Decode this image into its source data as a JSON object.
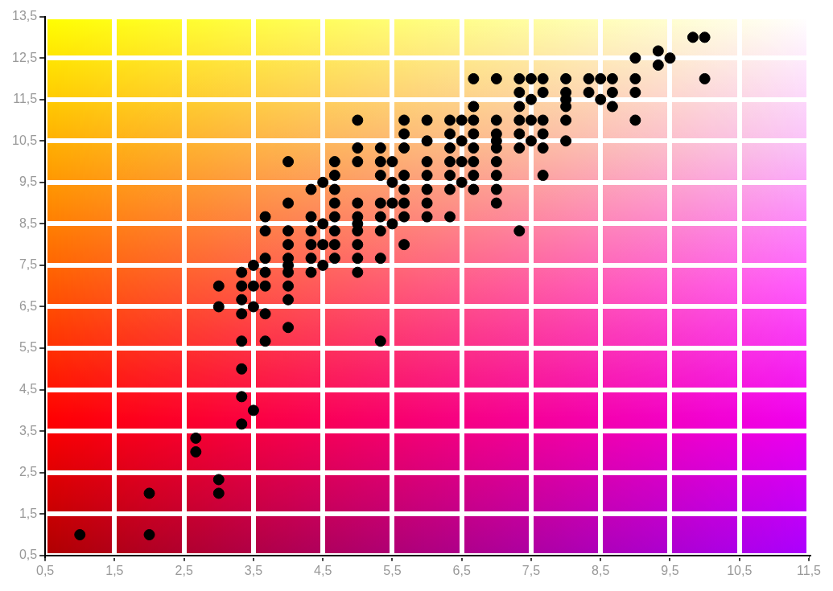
{
  "chart_data": {
    "type": "scatter",
    "xlim": [
      0.5,
      11.5
    ],
    "xticks": [
      {
        "value": 0.5,
        "label": "0,5"
      },
      {
        "value": 1.5,
        "label": "1,5"
      },
      {
        "value": 2.5,
        "label": "2,5"
      },
      {
        "value": 3.5,
        "label": "3,5"
      },
      {
        "value": 4.5,
        "label": "4,5"
      },
      {
        "value": 5.5,
        "label": "5,5"
      },
      {
        "value": 6.5,
        "label": "6,5"
      },
      {
        "value": 7.5,
        "label": "7,5"
      },
      {
        "value": 8.5,
        "label": "8,5"
      },
      {
        "value": 9.5,
        "label": "9,5"
      },
      {
        "value": 10.5,
        "label": "10,5"
      },
      {
        "value": 11.5,
        "label": "11,5"
      }
    ],
    "ylim": [
      0.5,
      13.5
    ],
    "yticks": [
      {
        "value": 0.5,
        "label": "0,5"
      },
      {
        "value": 1.5,
        "label": "1,5"
      },
      {
        "value": 2.5,
        "label": "2,5"
      },
      {
        "value": 3.5,
        "label": "3,5"
      },
      {
        "value": 4.5,
        "label": "4,5"
      },
      {
        "value": 5.5,
        "label": "5,5"
      },
      {
        "value": 6.5,
        "label": "6,5"
      },
      {
        "value": 7.5,
        "label": "7,5"
      },
      {
        "value": 8.5,
        "label": "8,5"
      },
      {
        "value": 9.5,
        "label": "9,5"
      },
      {
        "value": 10.5,
        "label": "10,5"
      },
      {
        "value": 11.5,
        "label": "11,5"
      },
      {
        "value": 12.5,
        "label": "12,5"
      },
      {
        "value": 13.5,
        "label": "13,5"
      }
    ],
    "grid": true,
    "legend": false,
    "marker": "circle",
    "series": [
      {
        "color": "#000000",
        "x": [
          1,
          2,
          2,
          2.67,
          2.67,
          3,
          3,
          3,
          3,
          3.33,
          3.33,
          3.33,
          3.33,
          3.33,
          3.33,
          3.33,
          3.33,
          3.5,
          3.5,
          3.5,
          3.5,
          3.67,
          3.67,
          3.67,
          3.67,
          3.67,
          3.67,
          3.67,
          4,
          4,
          4,
          4,
          4,
          4,
          4,
          4,
          4,
          4,
          4.33,
          4.33,
          4.33,
          4.33,
          4.33,
          4.33,
          4.5,
          4.5,
          4.5,
          4.5,
          4.67,
          4.67,
          4.67,
          4.67,
          4.67,
          4.67,
          4.67,
          4.67,
          5,
          5,
          5,
          5,
          5,
          5,
          5,
          5,
          5,
          5,
          5.33,
          5.33,
          5.33,
          5.33,
          5.33,
          5.33,
          5.33,
          5.33,
          5.5,
          5.5,
          5.5,
          5.5,
          5.67,
          5.67,
          5.67,
          5.67,
          5.67,
          5.67,
          5.67,
          5.67,
          6,
          6,
          6,
          6,
          6,
          6,
          6,
          6.33,
          6.33,
          6.33,
          6.33,
          6.33,
          6.33,
          6.33,
          6.5,
          6.5,
          6.5,
          6.5,
          6.67,
          6.67,
          6.67,
          6.67,
          6.67,
          6.67,
          6.67,
          6.67,
          7,
          7,
          7,
          7,
          7,
          7,
          7,
          7,
          7,
          7.33,
          7.33,
          7.33,
          7.33,
          7.33,
          7.33,
          7.33,
          7.5,
          7.5,
          7.5,
          7.5,
          7.67,
          7.67,
          7.67,
          7.67,
          7.67,
          7.67,
          8,
          8,
          8,
          8,
          8,
          8,
          8.33,
          8.33,
          8.5,
          8.5,
          8.67,
          8.67,
          8.67,
          9,
          9,
          9,
          9,
          9.33,
          9.33,
          9.5,
          9.83,
          10,
          10
        ],
        "values": [
          1,
          1,
          2,
          3,
          3.33,
          2,
          2.33,
          6.5,
          7,
          3.67,
          4.33,
          5,
          5.67,
          6.33,
          6.67,
          7,
          7.33,
          4,
          6.5,
          7,
          7.5,
          5.67,
          6.33,
          7,
          7.33,
          7.67,
          8.33,
          8.67,
          6,
          6.67,
          7,
          7.33,
          7.5,
          7.67,
          8,
          8.33,
          9,
          10,
          7.33,
          7.67,
          8,
          8.33,
          8.67,
          9.33,
          7.5,
          8,
          8.5,
          9.5,
          7.67,
          8,
          8.33,
          8.67,
          9,
          9.33,
          9.67,
          10,
          7.33,
          7.67,
          8,
          8.33,
          8.5,
          8.67,
          9,
          10,
          10.33,
          11,
          5.67,
          7.67,
          8.33,
          8.67,
          9,
          9.67,
          10,
          10.33,
          8.5,
          9,
          9.5,
          10,
          8,
          8.67,
          9,
          9.33,
          9.67,
          10.33,
          10.67,
          11,
          8.67,
          9,
          9.33,
          9.67,
          10,
          10.5,
          11,
          8.67,
          9.33,
          9.67,
          10,
          10.33,
          10.67,
          11,
          9.5,
          10,
          10.5,
          11,
          9.33,
          9.67,
          10,
          10.33,
          10.67,
          11,
          11.33,
          12,
          9,
          9.33,
          9.67,
          10,
          10.33,
          10.5,
          10.67,
          11,
          12,
          8.33,
          10.33,
          10.67,
          11,
          11.33,
          11.67,
          12,
          10.5,
          11,
          11.5,
          12,
          9.67,
          10.33,
          10.67,
          11,
          11.67,
          12,
          10.5,
          11,
          11.33,
          11.5,
          11.67,
          12,
          11.67,
          12,
          11.5,
          12,
          11.33,
          11.67,
          12,
          11,
          11.67,
          12,
          12.5,
          12.33,
          12.67,
          12.5,
          13,
          12,
          13
        ]
      }
    ]
  }
}
